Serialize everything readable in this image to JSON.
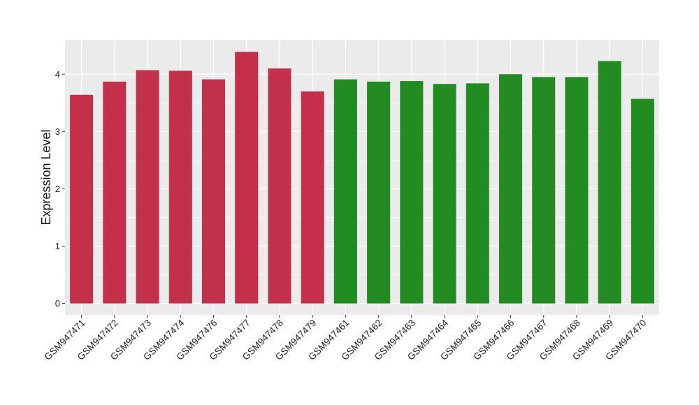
{
  "chart_data": {
    "type": "bar",
    "title": "",
    "xlabel": "",
    "ylabel": "Expression Level",
    "ylim": [
      -0.2,
      4.6
    ],
    "yticks": [
      0,
      1,
      2,
      3,
      4
    ],
    "grid": true,
    "categories": [
      "GSM947471",
      "GSM947472",
      "GSM947473",
      "GSM947474",
      "GSM947476",
      "GSM947477",
      "GSM947478",
      "GSM947479",
      "GSM947461",
      "GSM947462",
      "GSM947463",
      "GSM947464",
      "GSM947465",
      "GSM947466",
      "GSM947467",
      "GSM947468",
      "GSM947469",
      "GSM947470"
    ],
    "values": [
      3.64,
      3.87,
      4.07,
      4.06,
      3.91,
      4.39,
      4.1,
      3.7,
      3.91,
      3.87,
      3.88,
      3.83,
      3.84,
      4.0,
      3.95,
      3.95,
      4.23,
      3.57
    ],
    "groups": [
      "red",
      "red",
      "red",
      "red",
      "red",
      "red",
      "red",
      "red",
      "green",
      "green",
      "green",
      "green",
      "green",
      "green",
      "green",
      "green",
      "green",
      "green"
    ],
    "colors": {
      "red": "#C3304A",
      "green": "#228B22",
      "panel": "#EBEBEB",
      "grid": "#FFFFFF"
    }
  }
}
